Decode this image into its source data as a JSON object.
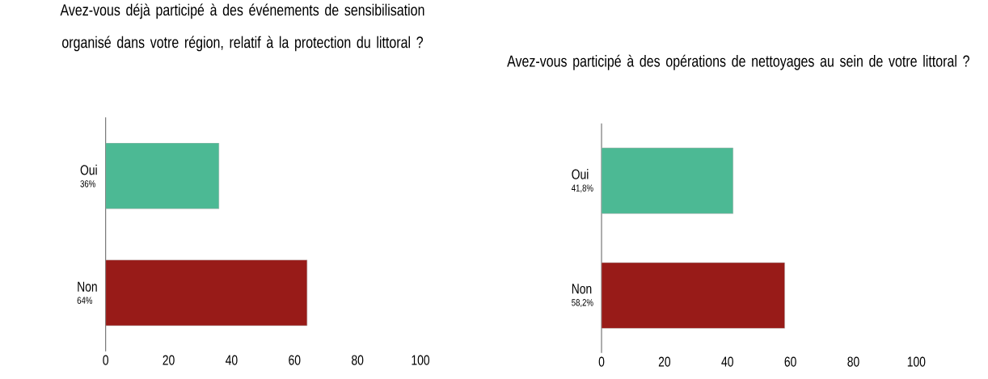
{
  "chart_data": [
    {
      "type": "bar",
      "orientation": "horizontal",
      "title": "Avez-vous déjà participé à des événements de sensibilisation organisé dans votre région, relatif à la protection du littoral ?",
      "categories": [
        "Oui",
        "Non"
      ],
      "values": [
        36,
        64
      ],
      "value_labels": [
        "36%",
        "64%"
      ],
      "colors": [
        "#4cb994",
        "#981b18"
      ],
      "xlim": [
        0,
        100
      ],
      "xticks": [
        0,
        20,
        40,
        60,
        80,
        100
      ]
    },
    {
      "type": "bar",
      "orientation": "horizontal",
      "title": "Avez-vous participé à des opérations de nettoyages au sein de votre littoral ?",
      "categories": [
        "Oui",
        "Non"
      ],
      "values": [
        41.8,
        58.2
      ],
      "value_labels": [
        "41,8%",
        "58,2%"
      ],
      "colors": [
        "#4cb994",
        "#981b18"
      ],
      "xlim": [
        0,
        100
      ],
      "xticks": [
        0,
        20,
        40,
        60,
        80,
        100
      ]
    }
  ]
}
